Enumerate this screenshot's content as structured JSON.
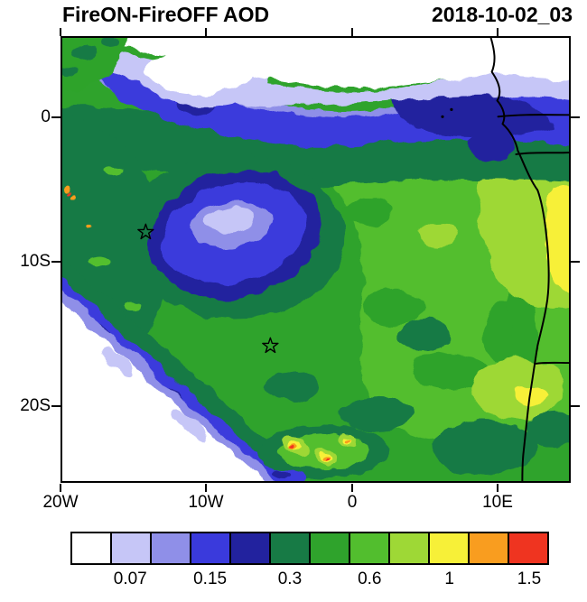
{
  "title": "FireON-FireOFF AOD",
  "date_label": "2018-10-02_03",
  "axes": {
    "y_ticks": [
      "0",
      "10S",
      "20S"
    ],
    "x_ticks": [
      "20W",
      "10W",
      "0",
      "10E"
    ]
  },
  "colorbar": {
    "colors": [
      "#FFFFFF",
      "#C6C6F7",
      "#8F8FE8",
      "#3A3ADC",
      "#22229E",
      "#177A45",
      "#2FA32C",
      "#52BE2E",
      "#9ED836",
      "#F7F038",
      "#F99D1F",
      "#EF3420"
    ],
    "labels": [
      "0.07",
      "0.15",
      "0.3",
      "0.6",
      "1",
      "1.5"
    ]
  },
  "chart_data": {
    "type": "heatmap",
    "title": "FireON-FireOFF AOD",
    "timestamp": "2018-10-02_03",
    "variable": "Aerosol optical depth difference (fire-on minus fire-off simulation)",
    "projection": "lat-lon filled-contour map over the south-east Atlantic and west-central Africa",
    "lon_range": [
      "20W",
      "15E"
    ],
    "lat_range": [
      "6N",
      "25S"
    ],
    "x_axis": {
      "ticks": [
        "20W",
        "10W",
        "0",
        "10E"
      ]
    },
    "y_axis": {
      "ticks": [
        "0",
        "10S",
        "20S"
      ]
    },
    "contour_levels_labeled": [
      0.07,
      0.15,
      0.3,
      0.6,
      1,
      1.5
    ],
    "palette": [
      "#FFFFFF",
      "#C6C6F7",
      "#8F8FE8",
      "#3A3ADC",
      "#22229E",
      "#177A45",
      "#2FA32C",
      "#52BE2E",
      "#9ED836",
      "#F7F038",
      "#F99D1F",
      "#EF3420"
    ],
    "markers": [
      {
        "shape": "open-star",
        "lon": "14W",
        "lat": "8S"
      },
      {
        "shape": "open-star",
        "lon": "6W",
        "lat": "16S"
      }
    ],
    "features": [
      "white near-zero band along the northern edge of the domain",
      "blue 0.07-0.15 band just south of the white band across the whole width",
      "closed blue/periwinkle minimum centered near 12W, 9S with pale core",
      "white near-zero wedge in the south-west corner below a NW-SE diagonal front fringed by blue",
      "broad green field (0.3-0.6) over most of the domain, darker green around the minima",
      "yellow-green to yellow maxima (0.6-1) near the Angolan coast and inland",
      "small orange-red maxima (1-1.5+) near 7W, 23S at the southern edge",
      "African coastline and country borders drawn in black",
      "two open star markers over the ocean"
    ]
  }
}
